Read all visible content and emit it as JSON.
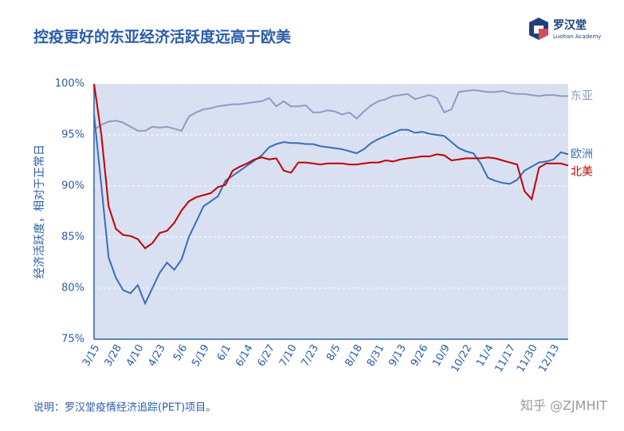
{
  "chart_data": {
    "type": "line",
    "title": "控疫更好的东亚经济活跃度远高于欧美",
    "y_label": "经济活跃度，相对于正常日",
    "note": "说明：罗汉堂疫情经济追踪(PET)项目。",
    "categories": [
      "3/15",
      null,
      null,
      "3/28",
      null,
      null,
      "4/10",
      null,
      null,
      "4/23",
      null,
      null,
      "5/6",
      null,
      null,
      "5/19",
      null,
      null,
      "6/1",
      null,
      null,
      "6/14",
      null,
      null,
      "6/27",
      null,
      null,
      "7/10",
      null,
      null,
      "7/23",
      null,
      null,
      "8/5",
      null,
      null,
      "8/18",
      null,
      null,
      "8/31",
      null,
      null,
      "9/13",
      null,
      null,
      "9/26",
      null,
      null,
      "10/9",
      null,
      null,
      "10/22",
      null,
      null,
      "11/4",
      null,
      null,
      "11/17",
      null,
      null,
      "11/30",
      null,
      null,
      "12/13",
      null,
      null
    ],
    "series": [
      {
        "name": "东亚",
        "color": "#8e9cc2",
        "values": [
          95.5,
          96.0,
          96.3,
          96.4,
          96.2,
          95.8,
          95.4,
          95.4,
          95.8,
          95.7,
          95.8,
          95.6,
          95.4,
          96.8,
          97.2,
          97.5,
          97.6,
          97.8,
          97.9,
          98.0,
          98.0,
          98.1,
          98.2,
          98.3,
          98.6,
          97.8,
          98.3,
          97.8,
          97.8,
          97.9,
          97.2,
          97.2,
          97.4,
          97.3,
          97.0,
          97.2,
          96.6,
          97.3,
          97.9,
          98.3,
          98.5,
          98.8,
          98.9,
          99.0,
          98.5,
          98.7,
          98.9,
          98.6,
          97.2,
          97.5,
          99.2,
          99.3,
          99.4,
          99.3,
          99.2,
          99.2,
          99.3,
          99.1,
          99.0,
          99.0,
          98.9,
          98.8,
          98.9,
          98.9,
          98.8,
          98.8
        ]
      },
      {
        "name": "欧洲",
        "color": "#3d6db5",
        "values": [
          97,
          90,
          83,
          81,
          79.8,
          79.5,
          80.3,
          78.5,
          80,
          81.5,
          82.5,
          81.8,
          82.8,
          85,
          86.5,
          88,
          88.5,
          89,
          90.5,
          91,
          91.5,
          92,
          92.5,
          93,
          93.8,
          94.1,
          94.3,
          94.2,
          94.2,
          94.1,
          94.1,
          93.9,
          93.8,
          93.7,
          93.6,
          93.4,
          93.2,
          93.6,
          94.2,
          94.6,
          94.9,
          95.2,
          95.5,
          95.5,
          95.2,
          95.3,
          95.1,
          95,
          94.9,
          94.3,
          93.7,
          93.4,
          93.2,
          92.2,
          90.8,
          90.5,
          90.3,
          90.2,
          90.6,
          91.5,
          91.9,
          92.3,
          92.4,
          92.6,
          93.3,
          93.1
        ]
      },
      {
        "name": "北美",
        "color": "#c00000",
        "values": [
          100,
          95,
          88,
          85.8,
          85.2,
          85.1,
          84.8,
          83.9,
          84.4,
          85.4,
          85.6,
          86.4,
          87.6,
          88.5,
          88.9,
          89.1,
          89.3,
          89.9,
          90.1,
          91.5,
          91.9,
          92.2,
          92.6,
          92.8,
          92.6,
          92.7,
          91.5,
          91.3,
          92.3,
          92.3,
          92.2,
          92.1,
          92.2,
          92.2,
          92.2,
          92.1,
          92.1,
          92.2,
          92.3,
          92.3,
          92.5,
          92.4,
          92.6,
          92.7,
          92.8,
          92.9,
          92.9,
          93.1,
          93.0,
          92.5,
          92.6,
          92.7,
          92.7,
          92.7,
          92.8,
          92.7,
          92.5,
          92.3,
          92.1,
          89.5,
          88.7,
          91.8,
          92.2,
          92.2,
          92.2,
          92.0
        ]
      }
    ],
    "ylim": [
      75,
      100
    ],
    "yticks": [
      {
        "value": 75,
        "label": "75%"
      },
      {
        "value": 80,
        "label": "80%"
      },
      {
        "value": 85,
        "label": "85%"
      },
      {
        "value": 90,
        "label": "90%"
      },
      {
        "value": 95,
        "label": "95%"
      },
      {
        "value": 100,
        "label": "100%"
      }
    ],
    "grid": true
  },
  "logo": {
    "name": "罗汉堂",
    "subtitle": "Luohan Academy"
  },
  "watermark": "知乎 @ZJMHIT"
}
